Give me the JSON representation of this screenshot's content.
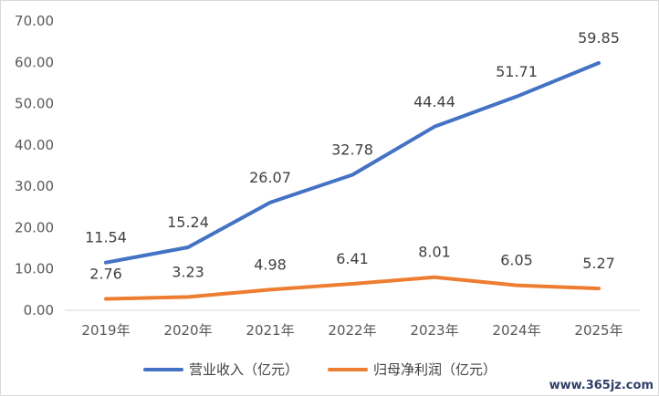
{
  "chart_data": {
    "type": "line",
    "categories": [
      "2019年",
      "2020年",
      "2021年",
      "2022年",
      "2023年",
      "2024年",
      "2025年"
    ],
    "ylim": [
      0,
      70
    ],
    "yticks": [
      "0.00",
      "10.00",
      "20.00",
      "30.00",
      "40.00",
      "50.00",
      "60.00",
      "70.00"
    ],
    "grid": false,
    "legend": "bottom",
    "series": [
      {
        "name": "营业收入（亿元）",
        "color": "#4472c4",
        "values": [
          11.54,
          15.24,
          26.07,
          32.78,
          44.44,
          51.71,
          59.85
        ],
        "labels": [
          "11.54",
          "15.24",
          "26.07",
          "32.78",
          "44.44",
          "51.71",
          "59.85"
        ]
      },
      {
        "name": "归母净利润（亿元）",
        "color": "#ed7d31",
        "values": [
          2.76,
          3.23,
          4.98,
          6.41,
          8.01,
          6.05,
          5.27
        ],
        "labels": [
          "2.76",
          "3.23",
          "4.98",
          "6.41",
          "8.01",
          "6.05",
          "5.27"
        ]
      }
    ]
  },
  "watermark": "www.365jz.com"
}
